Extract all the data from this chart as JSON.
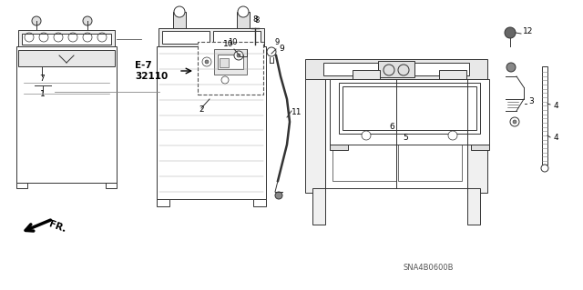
{
  "bg_color": "#ffffff",
  "diagram_code": "SNA4B0600B",
  "line_color": "#333333",
  "label_color": "#000000"
}
